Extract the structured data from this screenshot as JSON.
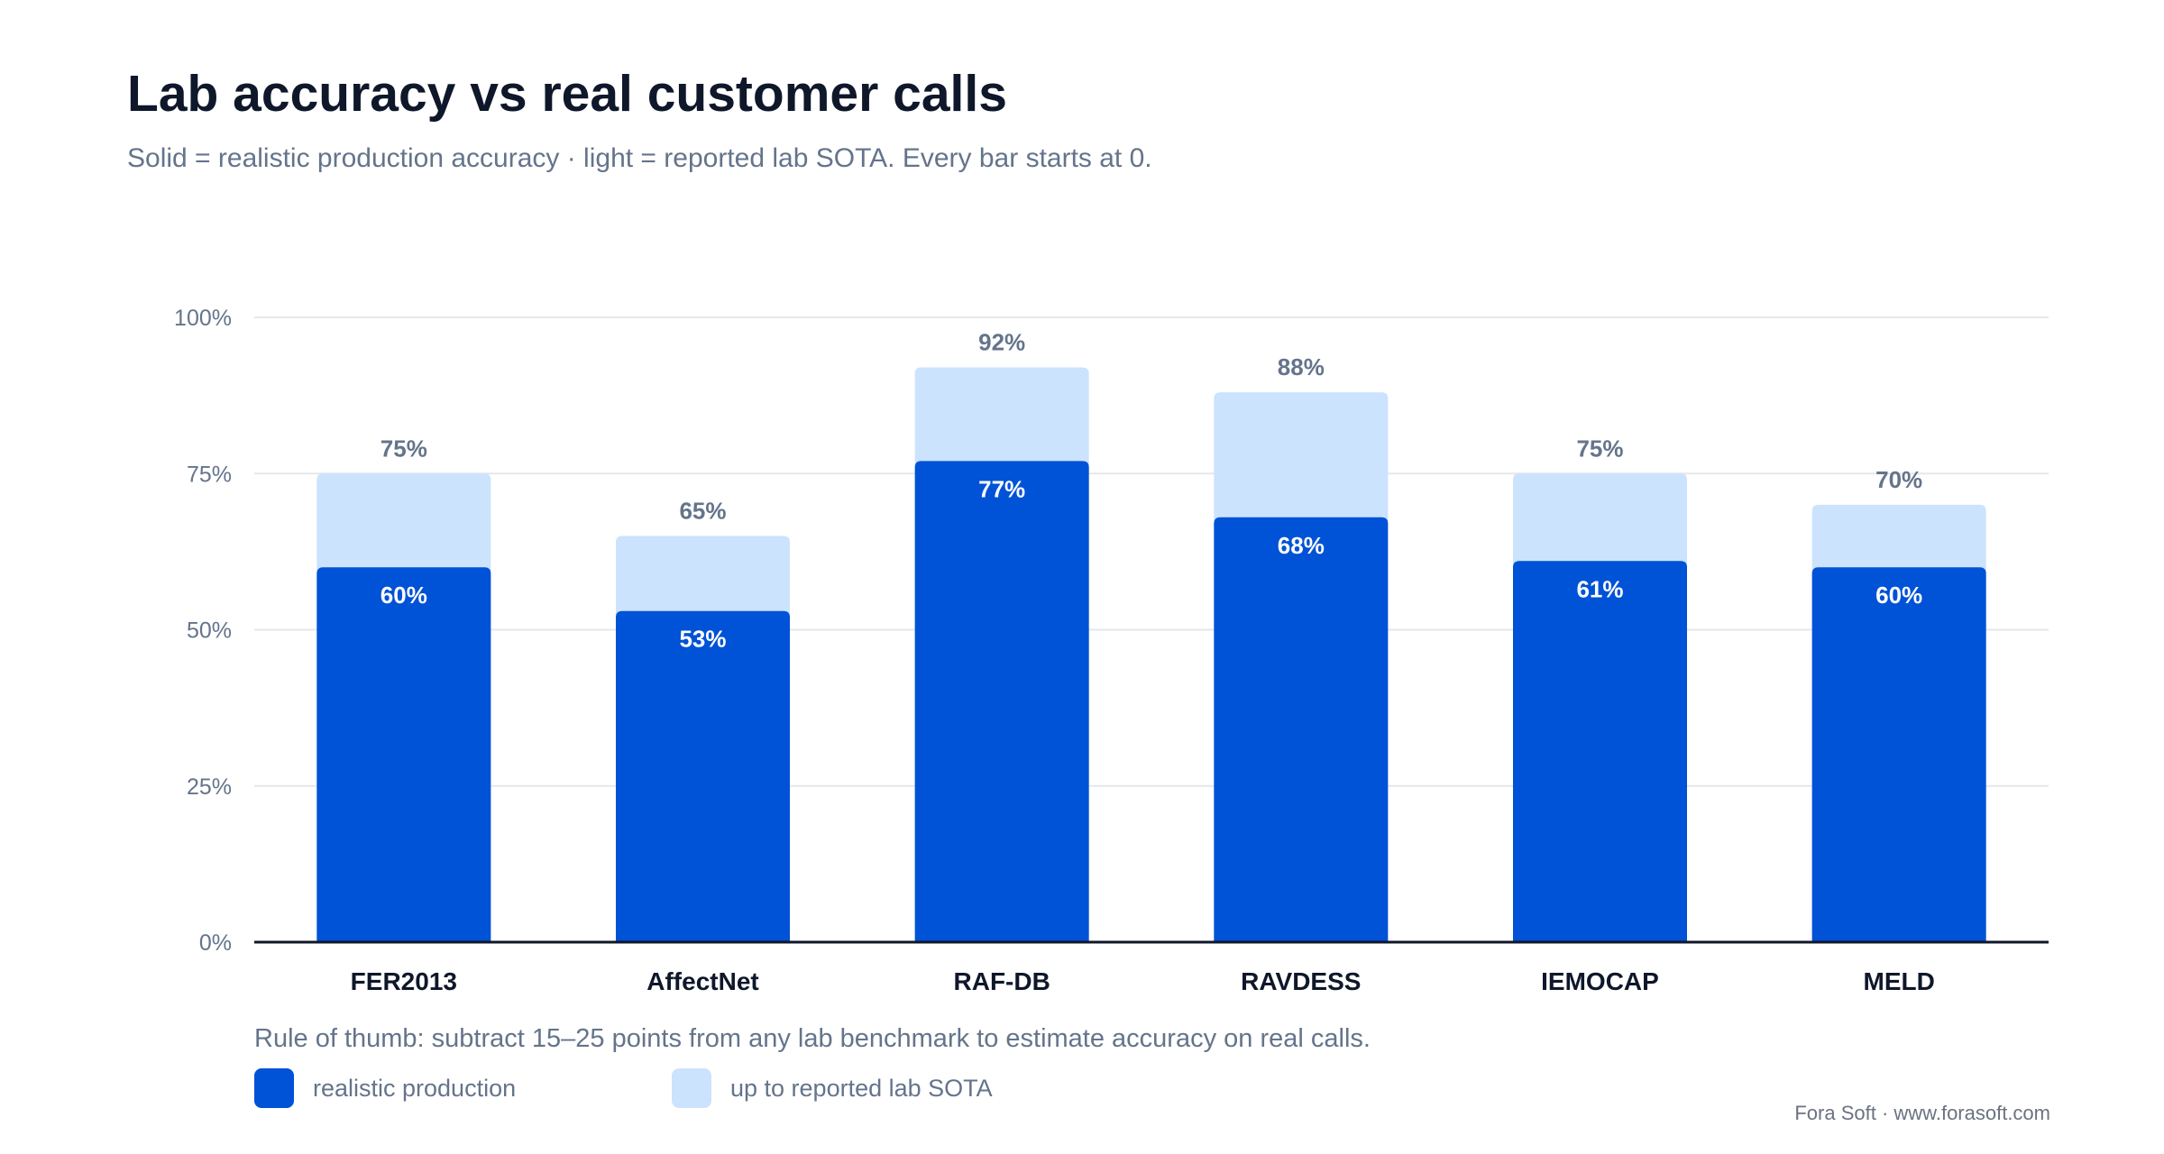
{
  "chart_data": {
    "type": "bar",
    "title": "Lab accuracy vs real customer calls",
    "subtitle": "Solid = realistic production accuracy · light = reported lab SOTA. Every bar starts at 0.",
    "categories": [
      "FER2013",
      "AffectNet",
      "RAF-DB",
      "RAVDESS",
      "IEMOCAP",
      "MELD"
    ],
    "series": [
      {
        "name": "realistic production",
        "values": [
          60,
          53,
          77,
          68,
          61,
          60
        ],
        "labels": [
          "60%",
          "53%",
          "77%",
          "68%",
          "61%",
          "60%"
        ],
        "color": "#0052d6"
      },
      {
        "name": "up to reported lab SOTA",
        "values": [
          75,
          65,
          92,
          88,
          75,
          70
        ],
        "labels": [
          "75%",
          "65%",
          "92%",
          "88%",
          "75%",
          "70%"
        ],
        "color": "#cce3fd"
      }
    ],
    "y_ticks": [
      0,
      25,
      50,
      75,
      100
    ],
    "y_tick_labels": [
      "0%",
      "25%",
      "50%",
      "75%",
      "100%"
    ],
    "ylim": [
      0,
      100
    ],
    "grid": true,
    "legend_position": "bottom-left",
    "note": "Rule of thumb: subtract 15–25 points from any lab benchmark to estimate accuracy on real calls.",
    "credit": "Fora Soft · www.forasoft.com"
  },
  "colors": {
    "production": "#0052d6",
    "lab": "#cce3fd",
    "gridline": "#e5e7eb",
    "axis": "#0f172a"
  }
}
